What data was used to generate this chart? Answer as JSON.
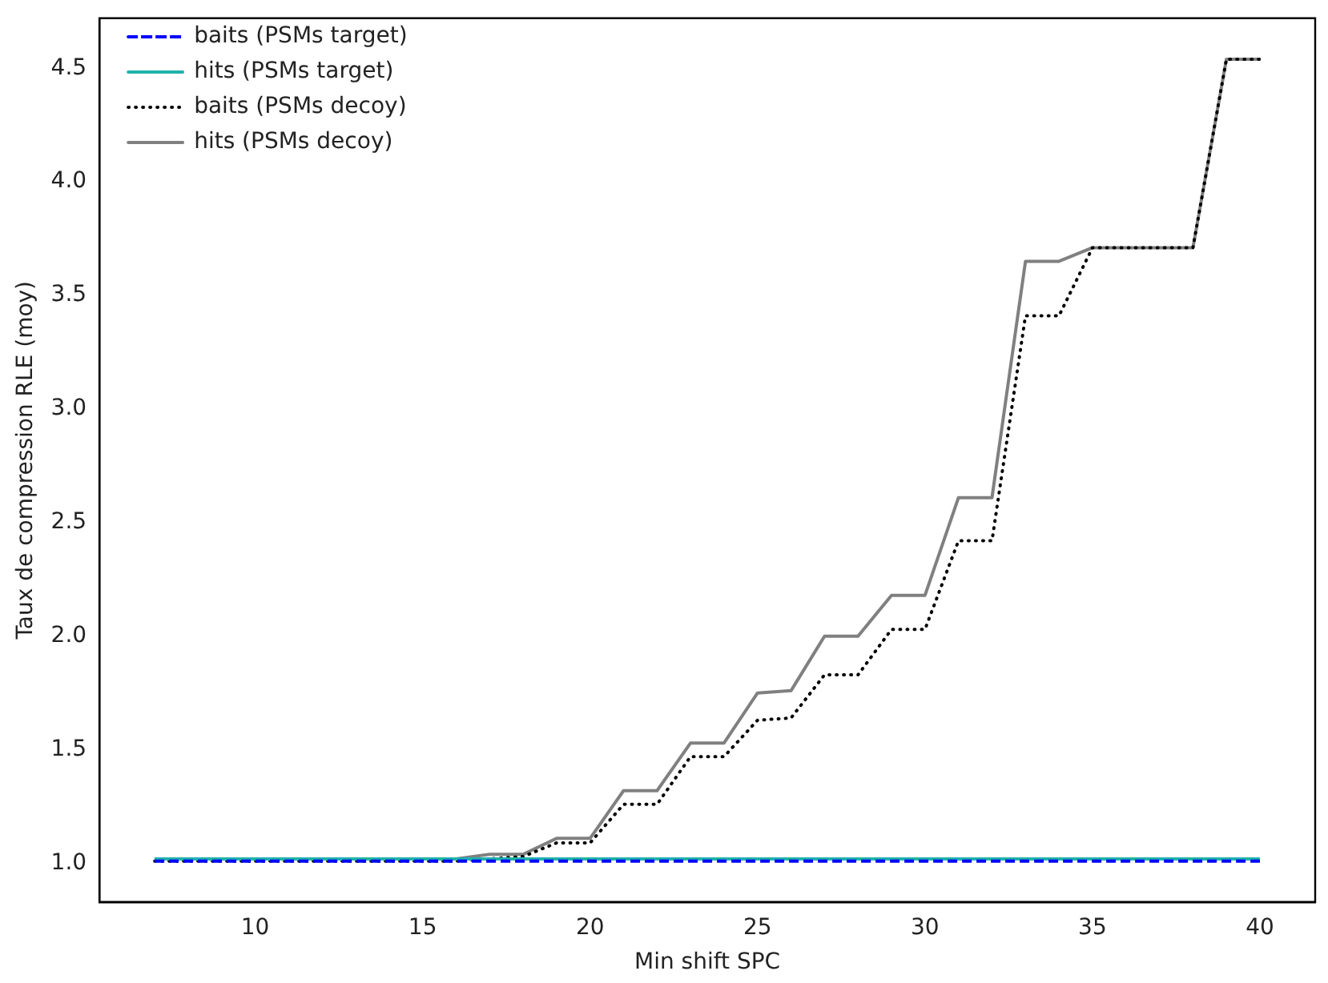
{
  "chart_data": {
    "type": "line",
    "xlabel": "Min shift SPC",
    "ylabel": "Taux de compression RLE (moy)",
    "x": [
      7,
      8,
      9,
      10,
      11,
      12,
      13,
      14,
      15,
      16,
      17,
      18,
      19,
      20,
      21,
      22,
      23,
      24,
      25,
      26,
      27,
      28,
      29,
      30,
      31,
      32,
      33,
      34,
      35,
      36,
      37,
      38,
      39,
      40
    ],
    "series": [
      {
        "name": "baits (PSMs target)",
        "color": "#0000ff",
        "line_style": "dashed",
        "values": [
          1.01,
          1.01,
          1.01,
          1.01,
          1.01,
          1.01,
          1.01,
          1.01,
          1.01,
          1.01,
          1.01,
          1.01,
          1.01,
          1.01,
          1.01,
          1.01,
          1.01,
          1.01,
          1.01,
          1.01,
          1.01,
          1.01,
          1.01,
          1.01,
          1.01,
          1.01,
          1.01,
          1.01,
          1.01,
          1.01,
          1.01,
          1.01,
          1.01,
          1.01
        ]
      },
      {
        "name": "hits (PSMs target)",
        "color": "#20b2aa",
        "line_style": "solid",
        "values": [
          1.02,
          1.02,
          1.02,
          1.02,
          1.02,
          1.02,
          1.02,
          1.02,
          1.02,
          1.02,
          1.02,
          1.02,
          1.02,
          1.02,
          1.02,
          1.02,
          1.02,
          1.02,
          1.02,
          1.02,
          1.02,
          1.02,
          1.02,
          1.02,
          1.02,
          1.02,
          1.02,
          1.02,
          1.02,
          1.02,
          1.02,
          1.02,
          1.02,
          1.02
        ]
      },
      {
        "name": "baits (PSMs decoy)",
        "color": "#000000",
        "line_style": "dotted",
        "values": [
          1.01,
          1.01,
          1.01,
          1.01,
          1.01,
          1.01,
          1.01,
          1.01,
          1.01,
          1.01,
          1.02,
          1.03,
          1.09,
          1.09,
          1.26,
          1.26,
          1.47,
          1.47,
          1.63,
          1.64,
          1.83,
          1.83,
          2.03,
          2.03,
          2.42,
          2.42,
          3.41,
          3.41,
          3.71,
          3.71,
          3.71,
          3.71,
          4.54,
          4.54
        ]
      },
      {
        "name": "hits (PSMs decoy)",
        "color": "#808080",
        "line_style": "solid",
        "values": [
          1.02,
          1.02,
          1.02,
          1.02,
          1.02,
          1.02,
          1.02,
          1.02,
          1.02,
          1.02,
          1.04,
          1.04,
          1.11,
          1.11,
          1.32,
          1.32,
          1.53,
          1.53,
          1.75,
          1.76,
          2.0,
          2.0,
          2.18,
          2.18,
          2.61,
          2.61,
          3.65,
          3.65,
          3.71,
          3.71,
          3.71,
          3.71,
          4.54,
          4.54
        ]
      }
    ],
    "xlim": [
      5.35,
      41.65
    ],
    "xticks": [
      10,
      15,
      20,
      25,
      30,
      35,
      40
    ],
    "ylim": [
      0.83,
      4.72
    ],
    "yticks": [
      {
        "value": 1,
        "label": "1.0"
      },
      1.5,
      {
        "value": 2,
        "label": "2.0"
      },
      2.5,
      {
        "value": 3,
        "label": "3.0"
      },
      3.5,
      {
        "value": 4,
        "label": "4.0"
      },
      4.5
    ],
    "grid": false,
    "legend": "top left",
    "marker": "none"
  }
}
